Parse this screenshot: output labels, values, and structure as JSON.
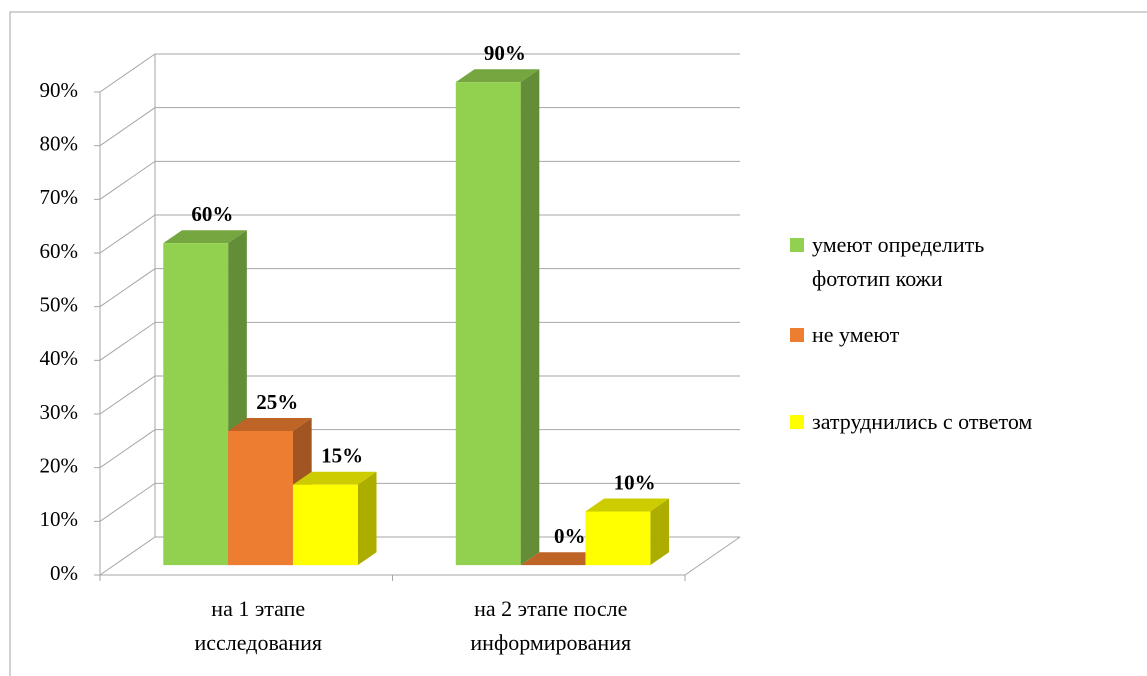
{
  "chart_data": {
    "type": "bar3d",
    "categories": [
      "на 1 этапе\nисследования",
      "на 2 этапе после\nинформирования"
    ],
    "series": [
      {
        "name": "умеют определить\nфототип кожи",
        "color": "#92d050",
        "values": [
          60,
          90
        ],
        "value_labels": [
          "60%",
          "90%"
        ]
      },
      {
        "name": "не умеют",
        "color": "#ed7d31",
        "values": [
          25,
          0
        ],
        "value_labels": [
          "25%",
          "0%"
        ]
      },
      {
        "name": "затруднились с ответом",
        "color": "#ffff00",
        "values": [
          15,
          10
        ],
        "value_labels": [
          "15%",
          "10%"
        ]
      }
    ],
    "ylim": [
      0,
      90
    ],
    "yticks": [
      {
        "value": 0,
        "label": "0%"
      },
      {
        "value": 10,
        "label": "10%"
      },
      {
        "value": 20,
        "label": "20%"
      },
      {
        "value": 30,
        "label": "30%"
      },
      {
        "value": 40,
        "label": "40%"
      },
      {
        "value": 50,
        "label": "50%"
      },
      {
        "value": 60,
        "label": "60%"
      },
      {
        "value": 70,
        "label": "70%"
      },
      {
        "value": 80,
        "label": "80%"
      },
      {
        "value": 90,
        "label": "90%"
      }
    ],
    "grid": true,
    "legend": "right"
  }
}
